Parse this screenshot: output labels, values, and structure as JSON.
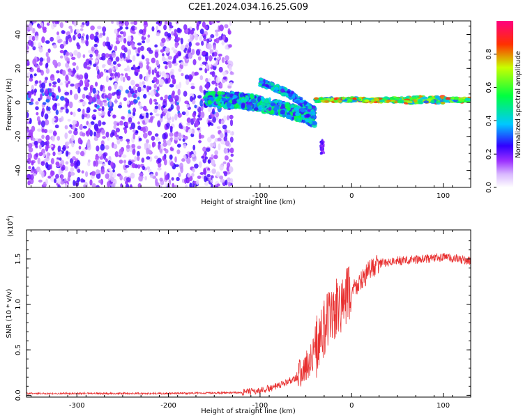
{
  "title": "C2E1.2024.034.16.25.G09",
  "chart_data": [
    {
      "type": "heatmap",
      "xlabel": "Height of straight line (km)",
      "ylabel": "Frequency (Hz)",
      "xlim": [
        -355,
        130
      ],
      "ylim": [
        -50,
        48
      ],
      "xticks": [
        -300,
        -200,
        -100,
        0,
        100
      ],
      "yticks": [
        -40,
        -20,
        0,
        20,
        40
      ],
      "colorbar": {
        "label": "Normalized spectral amplitude",
        "range": [
          0,
          1
        ],
        "ticks": [
          "0.0",
          "0.2",
          "0.4",
          "0.6",
          "0.8"
        ],
        "colors": [
          "#ffffff",
          "#d9b8ff",
          "#9b30ff",
          "#3000ff",
          "#00c8ff",
          "#00ff40",
          "#c8ff00",
          "#ff3000",
          "#ff0080"
        ]
      },
      "features": [
        {
          "name": "scatter",
          "x_range": [
            -355,
            -130
          ],
          "y_range": [
            -50,
            48
          ],
          "amplitude": 0.15
        },
        {
          "name": "main-band",
          "x": [
            -160,
            -120,
            -80,
            -50,
            -40
          ],
          "y": [
            2,
            1,
            -3,
            -8,
            -10
          ],
          "amplitude": 0.45
        },
        {
          "name": "branch",
          "x": [
            -100,
            -80,
            -65,
            -50,
            -40
          ],
          "y": [
            12,
            8,
            4,
            -2,
            -5
          ],
          "amplitude": 0.35
        },
        {
          "name": "carrier",
          "x_range": [
            -40,
            130
          ],
          "y": 1.5,
          "amplitude": 0.75
        }
      ]
    },
    {
      "type": "line",
      "xlabel": "Height of straight line (km)",
      "ylabel": "SNR (10 * v/v)",
      "yscale_label": "(x10",
      "yscale_exp": "4",
      "yscale_close": ")",
      "xlim": [
        -355,
        130
      ],
      "ylim": [
        -0.02,
        1.82
      ],
      "xticks": [
        -300,
        -200,
        -100,
        0,
        100
      ],
      "yticks": [
        0,
        0.5,
        1.0,
        1.5
      ],
      "ytick_labels": [
        "0.0",
        "0.5",
        "1.0",
        "1.5"
      ],
      "color": "#e83030",
      "x": [
        -355,
        -300,
        -200,
        -120,
        -100,
        -80,
        -60,
        -50,
        -40,
        -30,
        -20,
        -10,
        0,
        10,
        20,
        30,
        50,
        80,
        100,
        130
      ],
      "y": [
        0.02,
        0.02,
        0.02,
        0.03,
        0.05,
        0.1,
        0.2,
        0.3,
        0.5,
        0.75,
        0.9,
        1.0,
        1.15,
        1.25,
        1.38,
        1.45,
        1.48,
        1.5,
        1.52,
        1.48
      ]
    }
  ]
}
